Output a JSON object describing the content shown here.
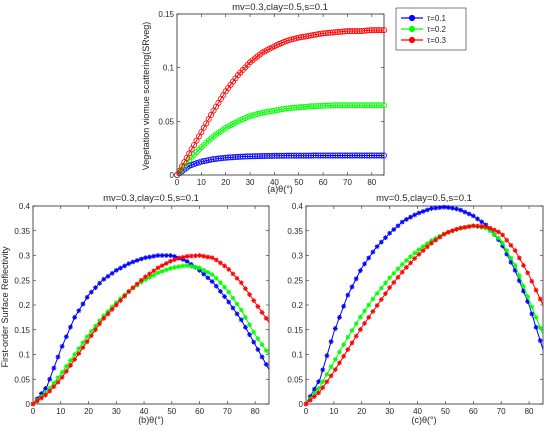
{
  "chart_data": [
    {
      "type": "line",
      "title": "mv=0.3,clay=0.5,s=0.1",
      "xlabel": "(a)θ(°)",
      "ylabel": "Vegetation viomue scattering(SRveg)",
      "xlim": [
        0,
        85
      ],
      "ylim": [
        0,
        0.15
      ],
      "xticks": [
        0,
        10,
        20,
        30,
        40,
        50,
        60,
        70,
        80
      ],
      "xtick_labels": [
        "0",
        "10",
        "20",
        "30",
        "40",
        "50",
        "60",
        "70",
        "80"
      ],
      "yticks": [
        0,
        0.05,
        0.1,
        0.15
      ],
      "ytick_labels": [
        "0",
        "0.05",
        "0.1",
        "0.15"
      ],
      "marker": "circle",
      "legend": {
        "position": "outside-right",
        "entries": [
          "τ=0.1",
          "τ=0.2",
          "τ=0.3"
        ]
      },
      "x": [
        0,
        5,
        10,
        15,
        20,
        25,
        30,
        35,
        40,
        45,
        50,
        55,
        60,
        65,
        70,
        75,
        80,
        85
      ],
      "series": [
        {
          "name": "τ=0.1",
          "color": "#0000ff",
          "values": [
            0,
            0.0085,
            0.0125,
            0.0148,
            0.0161,
            0.0169,
            0.0174,
            0.0177,
            0.0179,
            0.018,
            0.0181,
            0.0181,
            0.0182,
            0.0182,
            0.0182,
            0.0182,
            0.0182,
            0.0182
          ]
        },
        {
          "name": "τ=0.2",
          "color": "#00ff00",
          "values": [
            0,
            0.014,
            0.026,
            0.036,
            0.044,
            0.05,
            0.055,
            0.058,
            0.06,
            0.062,
            0.063,
            0.064,
            0.0645,
            0.065,
            0.065,
            0.065,
            0.065,
            0.065
          ]
        },
        {
          "name": "τ=0.3",
          "color": "#ff0000",
          "values": [
            0,
            0.02,
            0.04,
            0.06,
            0.078,
            0.093,
            0.105,
            0.114,
            0.12,
            0.125,
            0.128,
            0.13,
            0.132,
            0.133,
            0.134,
            0.134,
            0.135,
            0.135
          ]
        }
      ]
    },
    {
      "type": "line",
      "title": "mv=0.3,clay=0.5,s=0.1",
      "xlabel": "(b)θ(°)",
      "ylabel": "First-order Surface Reflectivity",
      "xlim": [
        0,
        85
      ],
      "ylim": [
        0,
        0.4
      ],
      "xticks": [
        0,
        10,
        20,
        30,
        40,
        50,
        60,
        70,
        80
      ],
      "xtick_labels": [
        "0",
        "10",
        "20",
        "30",
        "40",
        "50",
        "60",
        "70",
        "80"
      ],
      "yticks": [
        0,
        0.05,
        0.1,
        0.15,
        0.2,
        0.25,
        0.3,
        0.35,
        0.4
      ],
      "ytick_labels": [
        "0",
        "0.05",
        "0.1",
        "0.15",
        "0.2",
        "0.25",
        "0.3",
        "0.35",
        "0.4"
      ],
      "marker": "asterisk",
      "x": [
        0,
        5,
        10,
        15,
        20,
        25,
        30,
        35,
        40,
        45,
        50,
        55,
        60,
        65,
        70,
        75,
        80,
        85
      ],
      "series": [
        {
          "name": "τ=0.1",
          "color": "#0000ff",
          "values": [
            0,
            0.035,
            0.11,
            0.175,
            0.22,
            0.25,
            0.27,
            0.285,
            0.295,
            0.3,
            0.3,
            0.29,
            0.27,
            0.245,
            0.21,
            0.17,
            0.12,
            0.07
          ]
        },
        {
          "name": "τ=0.2",
          "color": "#00ff00",
          "values": [
            0,
            0.025,
            0.06,
            0.1,
            0.14,
            0.175,
            0.205,
            0.23,
            0.25,
            0.265,
            0.275,
            0.28,
            0.275,
            0.26,
            0.23,
            0.19,
            0.14,
            0.1
          ]
        },
        {
          "name": "τ=0.3",
          "color": "#ff0000",
          "values": [
            0,
            0.02,
            0.05,
            0.09,
            0.13,
            0.17,
            0.2,
            0.23,
            0.255,
            0.275,
            0.29,
            0.298,
            0.3,
            0.295,
            0.275,
            0.245,
            0.205,
            0.165
          ]
        }
      ]
    },
    {
      "type": "line",
      "title": "mv=0.5,clay=0.5,s=0.1",
      "xlabel": "(c)θ(°)",
      "ylabel": "",
      "xlim": [
        0,
        85
      ],
      "ylim": [
        0,
        0.4
      ],
      "xticks": [
        0,
        10,
        20,
        30,
        40,
        50,
        60,
        70,
        80
      ],
      "xtick_labels": [
        "0",
        "10",
        "20",
        "30",
        "40",
        "50",
        "60",
        "70",
        "80"
      ],
      "yticks": [
        0,
        0.05,
        0.1,
        0.15,
        0.2,
        0.25,
        0.3,
        0.35,
        0.4
      ],
      "ytick_labels": [
        "0",
        "0.05",
        "0.1",
        "0.15",
        "0.2",
        "0.25",
        "0.3",
        "0.35",
        "0.4"
      ],
      "marker": "asterisk",
      "x": [
        0,
        5,
        10,
        15,
        20,
        25,
        30,
        35,
        40,
        45,
        50,
        55,
        60,
        65,
        70,
        75,
        80,
        85
      ],
      "series": [
        {
          "name": "τ=0.1",
          "color": "#0000ff",
          "values": [
            0,
            0.05,
            0.145,
            0.22,
            0.275,
            0.315,
            0.345,
            0.37,
            0.385,
            0.395,
            0.398,
            0.393,
            0.38,
            0.36,
            0.325,
            0.27,
            0.2,
            0.11
          ]
        },
        {
          "name": "τ=0.2",
          "color": "#00ff00",
          "values": [
            0,
            0.035,
            0.085,
            0.135,
            0.18,
            0.22,
            0.255,
            0.285,
            0.31,
            0.33,
            0.345,
            0.355,
            0.36,
            0.355,
            0.33,
            0.28,
            0.21,
            0.14
          ]
        },
        {
          "name": "τ=0.3",
          "color": "#ff0000",
          "values": [
            0,
            0.025,
            0.065,
            0.11,
            0.155,
            0.195,
            0.235,
            0.27,
            0.3,
            0.325,
            0.345,
            0.355,
            0.36,
            0.358,
            0.345,
            0.31,
            0.26,
            0.2
          ]
        }
      ]
    }
  ]
}
